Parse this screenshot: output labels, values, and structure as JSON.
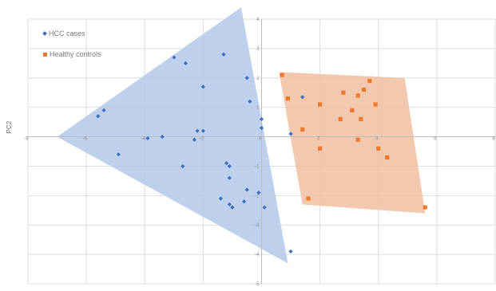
{
  "chart_data": {
    "type": "scatter",
    "ylabel": "PC2",
    "xlim": [
      -8,
      8
    ],
    "ylim": [
      -5,
      4
    ],
    "x_ticks": [
      {
        "value": -8,
        "label": "-8"
      },
      {
        "value": -6,
        "label": "-6"
      },
      {
        "value": -4,
        "label": "-4"
      },
      {
        "value": -2,
        "label": "-2"
      },
      {
        "value": 0,
        "label": "0"
      },
      {
        "value": 2,
        "label": "2"
      },
      {
        "value": 4,
        "label": "4"
      },
      {
        "value": 6,
        "label": "6"
      },
      {
        "value": 8,
        "label": "8"
      }
    ],
    "y_ticks": [
      {
        "value": 4,
        "label": "4"
      },
      {
        "value": 3,
        "label": "3"
      },
      {
        "value": 2,
        "label": "2"
      },
      {
        "value": 1,
        "label": "1"
      },
      {
        "value": -1,
        "label": "-1"
      },
      {
        "value": -2,
        "label": "-2"
      },
      {
        "value": -3,
        "label": "-3"
      },
      {
        "value": -4,
        "label": "-4"
      },
      {
        "value": -5,
        "label": "-5"
      }
    ],
    "grid": true,
    "legend_position": "top-left",
    "series": [
      {
        "name": "HCC cases",
        "marker": "diamond",
        "color": "#3f6fc0",
        "hull_color": "#b4c8ea",
        "hull": [
          [
            -7.0,
            0.0
          ],
          [
            -0.7,
            4.4
          ],
          [
            0.9,
            -4.3
          ]
        ],
        "points": [
          [
            -5.4,
            0.9
          ],
          [
            -5.6,
            0.7
          ],
          [
            -4.9,
            -0.6
          ],
          [
            -3.9,
            -0.05
          ],
          [
            -3.4,
            0.0
          ],
          [
            -3.0,
            2.7
          ],
          [
            -2.7,
            -1.0
          ],
          [
            -2.6,
            2.5
          ],
          [
            -2.3,
            -0.1
          ],
          [
            -2.2,
            0.2
          ],
          [
            -2.0,
            0.2
          ],
          [
            -2.0,
            1.7
          ],
          [
            -1.4,
            -2.1
          ],
          [
            -1.3,
            2.8
          ],
          [
            -1.2,
            -0.9
          ],
          [
            -1.1,
            -1.0
          ],
          [
            -1.1,
            -1.4
          ],
          [
            -1.1,
            -2.3
          ],
          [
            -1.0,
            -2.4
          ],
          [
            -0.6,
            -2.2
          ],
          [
            -0.5,
            2.0
          ],
          [
            -0.5,
            -1.8
          ],
          [
            -0.4,
            1.2
          ],
          [
            -0.1,
            -1.9
          ],
          [
            0.0,
            0.6
          ],
          [
            0.0,
            0.3
          ],
          [
            0.1,
            -2.4
          ],
          [
            1.0,
            -3.9
          ],
          [
            1.0,
            0.1
          ],
          [
            1.4,
            1.35
          ]
        ]
      },
      {
        "name": "Healthy controls",
        "marker": "square",
        "color": "#ee7a30",
        "hull_color": "#f0c0a0",
        "hull": [
          [
            0.6,
            2.2
          ],
          [
            4.9,
            2.0
          ],
          [
            5.6,
            -2.6
          ],
          [
            1.4,
            -2.3
          ]
        ],
        "points": [
          [
            0.7,
            2.1
          ],
          [
            0.9,
            1.3
          ],
          [
            1.4,
            0.25
          ],
          [
            1.6,
            -2.1
          ],
          [
            2.0,
            1.1
          ],
          [
            2.0,
            -0.4
          ],
          [
            2.7,
            0.6
          ],
          [
            2.8,
            1.5
          ],
          [
            3.1,
            0.9
          ],
          [
            3.3,
            -0.1
          ],
          [
            3.3,
            1.4
          ],
          [
            3.4,
            0.6
          ],
          [
            3.5,
            1.6
          ],
          [
            3.7,
            1.9
          ],
          [
            3.9,
            1.1
          ],
          [
            4.0,
            -0.4
          ],
          [
            4.3,
            -0.7
          ],
          [
            5.6,
            -2.4
          ]
        ]
      }
    ]
  }
}
